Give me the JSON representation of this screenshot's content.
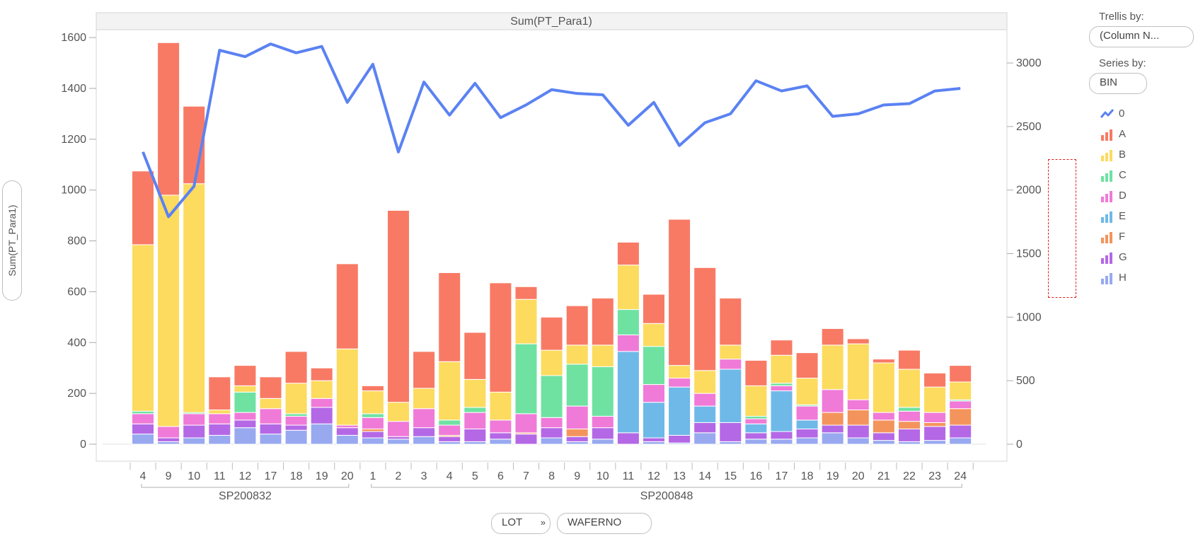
{
  "chart_data": {
    "type": "bar",
    "title": "Sum(PT_Para1)",
    "ylabel": "Sum(PT_Para1)",
    "ylim": [
      0,
      1650
    ],
    "y_ticks": [
      0,
      200,
      400,
      600,
      800,
      1000,
      1200,
      1400,
      1600
    ],
    "y2lim": [
      0,
      3300
    ],
    "y2_ticks": [
      0,
      500,
      1000,
      1500,
      2000,
      2500,
      3000
    ],
    "groups": [
      {
        "name": "SP200832",
        "count": 9
      },
      {
        "name": "SP200848",
        "count": 24
      }
    ],
    "categories": [
      "4",
      "9",
      "10",
      "11",
      "12",
      "17",
      "18",
      "19",
      "20",
      "1",
      "2",
      "3",
      "4",
      "5",
      "6",
      "7",
      "8",
      "9",
      "10",
      "11",
      "12",
      "13",
      "14",
      "15",
      "16",
      "17",
      "18",
      "19",
      "20",
      "21",
      "22",
      "23",
      "24"
    ],
    "series": [
      {
        "name": "H",
        "color": "#98a9f0",
        "values": [
          40,
          10,
          25,
          35,
          65,
          40,
          55,
          80,
          35,
          25,
          20,
          30,
          10,
          10,
          20,
          0,
          25,
          10,
          20,
          0,
          10,
          5,
          45,
          10,
          20,
          20,
          25,
          45,
          25,
          15,
          10,
          15,
          25
        ]
      },
      {
        "name": "G",
        "color": "#b468e6",
        "values": [
          40,
          15,
          50,
          45,
          30,
          40,
          20,
          65,
          30,
          25,
          10,
          35,
          20,
          50,
          25,
          40,
          40,
          20,
          45,
          45,
          15,
          30,
          40,
          75,
          25,
          30,
          35,
          30,
          50,
          30,
          50,
          55,
          50
        ]
      },
      {
        "name": "F",
        "color": "#f4945d",
        "values": [
          0,
          0,
          0,
          0,
          0,
          0,
          0,
          0,
          0,
          10,
          0,
          0,
          5,
          0,
          0,
          5,
          0,
          30,
          0,
          0,
          0,
          0,
          0,
          0,
          0,
          0,
          0,
          50,
          60,
          50,
          30,
          15,
          65
        ]
      },
      {
        "name": "E",
        "color": "#6fb9e9",
        "values": [
          0,
          0,
          0,
          0,
          0,
          0,
          0,
          0,
          0,
          0,
          0,
          0,
          0,
          0,
          0,
          0,
          0,
          0,
          0,
          320,
          140,
          190,
          65,
          210,
          35,
          160,
          35,
          0,
          0,
          0,
          0,
          0,
          0
        ]
      },
      {
        "name": "D",
        "color": "#f07ad8",
        "values": [
          40,
          45,
          45,
          40,
          30,
          60,
          35,
          35,
          10,
          45,
          60,
          75,
          40,
          65,
          50,
          75,
          40,
          90,
          45,
          65,
          70,
          35,
          50,
          40,
          20,
          20,
          55,
          90,
          40,
          30,
          40,
          40,
          30
        ]
      },
      {
        "name": "C",
        "color": "#6fe2a2",
        "values": [
          10,
          0,
          5,
          0,
          80,
          0,
          10,
          0,
          0,
          15,
          0,
          0,
          20,
          20,
          0,
          275,
          165,
          165,
          195,
          100,
          150,
          0,
          0,
          0,
          10,
          10,
          5,
          0,
          0,
          0,
          15,
          0,
          5
        ]
      },
      {
        "name": "B",
        "color": "#fcdb5e",
        "values": [
          655,
          910,
          900,
          15,
          25,
          40,
          120,
          70,
          300,
          90,
          75,
          80,
          230,
          110,
          110,
          175,
          100,
          75,
          85,
          175,
          90,
          50,
          90,
          55,
          120,
          110,
          105,
          175,
          220,
          195,
          150,
          100,
          70
        ]
      },
      {
        "name": "A",
        "color": "#f87a65",
        "values": [
          290,
          600,
          305,
          130,
          80,
          85,
          125,
          50,
          335,
          20,
          755,
          145,
          350,
          185,
          430,
          50,
          130,
          155,
          185,
          90,
          115,
          575,
          405,
          185,
          100,
          60,
          100,
          65,
          20,
          15,
          75,
          55,
          65
        ]
      }
    ],
    "line": {
      "name": "0",
      "color": "#5b82f3",
      "axis": "right",
      "values": [
        2300,
        1790,
        2030,
        3100,
        3050,
        3150,
        3080,
        3130,
        2690,
        2990,
        2300,
        2850,
        2590,
        2840,
        2570,
        2670,
        2790,
        2760,
        2750,
        2510,
        2690,
        2350,
        2530,
        2600,
        2860,
        2780,
        2820,
        2580,
        2600,
        2670,
        2680,
        2780,
        2800
      ]
    }
  },
  "controls": {
    "trellis_label": "Trellis by:",
    "trellis_value": "(Column N...",
    "series_label": "Series by:",
    "series_value": "BIN",
    "x_pill_lot": "LOT",
    "x_pill_separator": "»",
    "x_pill_wafer": "WAFERNO"
  },
  "legend": [
    {
      "label": "0",
      "kind": "line",
      "color": "#5b82f3"
    },
    {
      "label": "A",
      "kind": "bar",
      "color": "#f87a65"
    },
    {
      "label": "B",
      "kind": "bar",
      "color": "#fcdb5e"
    },
    {
      "label": "C",
      "kind": "bar",
      "color": "#6fe2a2"
    },
    {
      "label": "D",
      "kind": "bar",
      "color": "#f07ad8"
    },
    {
      "label": "E",
      "kind": "bar",
      "color": "#6fb9e9"
    },
    {
      "label": "F",
      "kind": "bar",
      "color": "#f4945d"
    },
    {
      "label": "G",
      "kind": "bar",
      "color": "#b468e6"
    },
    {
      "label": "H",
      "kind": "bar",
      "color": "#98a9f0"
    }
  ]
}
